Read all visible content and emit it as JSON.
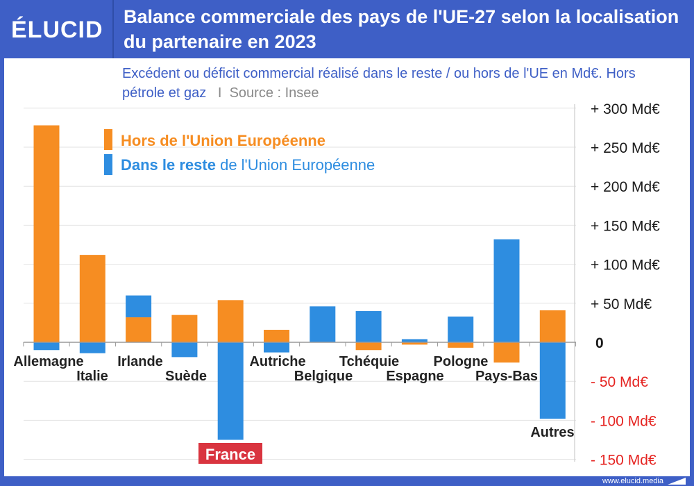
{
  "header": {
    "logo": "ÉLUCID",
    "title": "Balance commerciale des pays de l'UE-27 selon la localisation du partenaire en 2023"
  },
  "subtitle": {
    "text": "Excédent ou déficit commercial réalisé dans le reste / ou hors de l'UE en Md€. Hors pétrole et gaz",
    "separator": "I",
    "source": "Source : Insee"
  },
  "legend": {
    "hors_label": "Hors de l'Union Européenne",
    "dans_label_strong": "Dans le reste",
    "dans_label_rest": " de l'Union Européenne"
  },
  "footer": {
    "url": "www.elucid.media"
  },
  "colors": {
    "orange": "#f68d22",
    "blue": "#2e8de0",
    "header_blue": "#3e5fc6",
    "negative_red": "#e52421",
    "france_bg": "#d9343f"
  },
  "icons": {
    "logo": "elucid-wordmark",
    "footer": "elucid-mark-icon"
  },
  "chart_data": {
    "type": "bar",
    "stacked": true,
    "categories": [
      "Allemagne",
      "Italie",
      "Irlande",
      "Suède",
      "France",
      "Autriche",
      "Belgique",
      "Tchéquie",
      "Espagne",
      "Pologne",
      "Pays-Bas",
      "Autres"
    ],
    "highlight_category": "France",
    "series": [
      {
        "name": "Hors de l'Union Européenne",
        "color": "#f68d22",
        "values": [
          278,
          112,
          32,
          35,
          54,
          16,
          0,
          -10,
          -3,
          -7,
          -26,
          41
        ]
      },
      {
        "name": "Dans le reste de l'Union Européenne",
        "color": "#2e8de0",
        "values": [
          -10,
          -14,
          28,
          -19,
          -125,
          -13,
          46,
          40,
          4,
          33,
          132,
          -98
        ]
      }
    ],
    "y_ticks": [
      {
        "value": 300,
        "label": "+ 300 Md€"
      },
      {
        "value": 250,
        "label": "+ 250 Md€"
      },
      {
        "value": 200,
        "label": "+ 200 Md€"
      },
      {
        "value": 150,
        "label": "+ 150 Md€"
      },
      {
        "value": 100,
        "label": "+ 100 Md€"
      },
      {
        "value": 50,
        "label": "+ 50 Md€"
      },
      {
        "value": 0,
        "label": "0"
      },
      {
        "value": -50,
        "label": "- 50 Md€"
      },
      {
        "value": -100,
        "label": "- 100 Md€"
      },
      {
        "value": -150,
        "label": "- 150 Md€"
      }
    ],
    "ylim": [
      -150,
      300
    ],
    "grid": true,
    "legend_position": "top-left",
    "xlabel": "",
    "ylabel": ""
  }
}
